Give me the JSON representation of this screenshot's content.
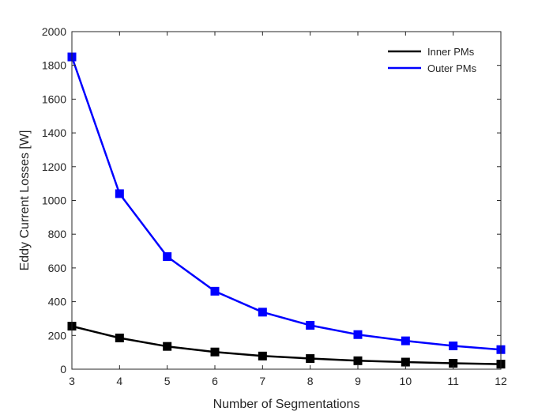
{
  "chart_data": {
    "type": "line",
    "xlabel": "Number of Segmentations",
    "ylabel": "Eddy Current Losses [W]",
    "x": [
      3,
      4,
      5,
      6,
      7,
      8,
      9,
      10,
      11,
      12
    ],
    "xlim": [
      3,
      12
    ],
    "ylim": [
      0,
      2000
    ],
    "xticks": [
      3,
      4,
      5,
      6,
      7,
      8,
      9,
      10,
      11,
      12
    ],
    "yticks": [
      0,
      200,
      400,
      600,
      800,
      1000,
      1200,
      1400,
      1600,
      1800,
      2000
    ],
    "grid": false,
    "legend_position": "top-right",
    "series": [
      {
        "name": "Inner PMs",
        "color": "#000000",
        "marker": "square",
        "values": [
          255,
          185,
          135,
          102,
          78,
          63,
          50,
          42,
          35,
          30
        ]
      },
      {
        "name": "Outer PMs",
        "color": "#0000ff",
        "marker": "square",
        "values": [
          1850,
          1040,
          667,
          462,
          338,
          260,
          205,
          168,
          138,
          116
        ]
      }
    ]
  }
}
